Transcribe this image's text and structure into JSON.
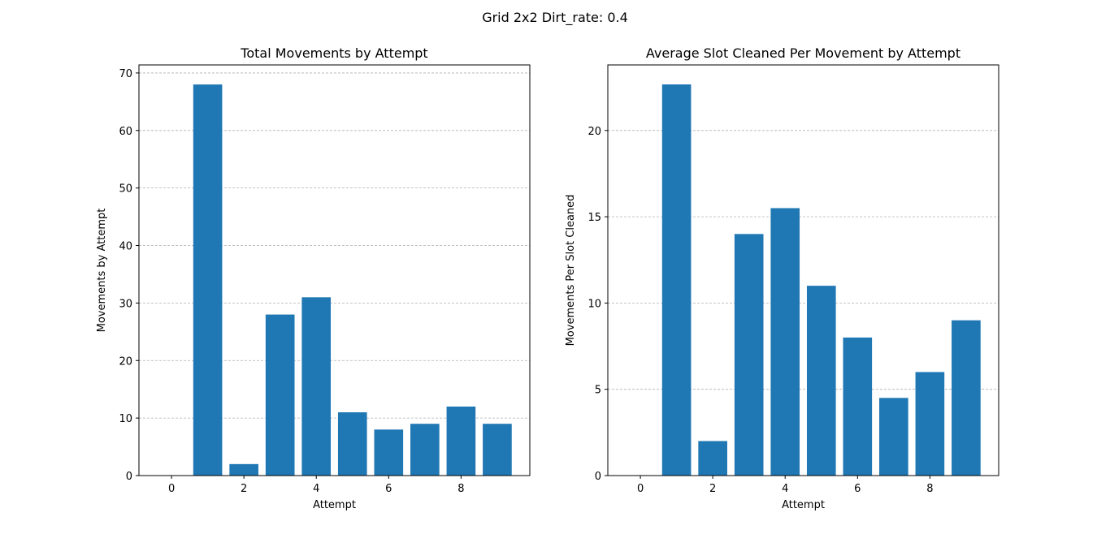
{
  "suptitle": "Grid 2x2 Dirt_rate: 0.4",
  "chart_data": [
    {
      "type": "bar",
      "title": "Total Movements by Attempt",
      "xlabel": "Attempt",
      "ylabel": "Movements by Attempt",
      "x": [
        0,
        1,
        2,
        3,
        4,
        5,
        6,
        7,
        8,
        9
      ],
      "values": [
        0,
        68,
        2,
        28,
        31,
        11,
        8,
        9,
        12,
        9
      ],
      "xlim": [
        -0.9,
        9.9
      ],
      "ylim": [
        0,
        71.4
      ],
      "xticks": [
        0,
        2,
        4,
        6,
        8
      ],
      "yticks": [
        0,
        10,
        20,
        30,
        40,
        50,
        60,
        70
      ],
      "grid": "y-dashed",
      "color": "#1f77b4"
    },
    {
      "type": "bar",
      "title": "Average Slot Cleaned Per Movement by Attempt",
      "xlabel": "Attempt",
      "ylabel": "Movements Per Slot Cleaned",
      "x": [
        0,
        1,
        2,
        3,
        4,
        5,
        6,
        7,
        8,
        9
      ],
      "values": [
        0,
        22.67,
        2,
        14,
        15.5,
        11,
        8,
        4.5,
        6,
        9
      ],
      "xlim": [
        -0.9,
        9.9
      ],
      "ylim": [
        0,
        23.8
      ],
      "xticks": [
        0,
        2,
        4,
        6,
        8
      ],
      "yticks": [
        0,
        5,
        10,
        15,
        20
      ],
      "grid": "y-dashed",
      "color": "#1f77b4"
    }
  ]
}
